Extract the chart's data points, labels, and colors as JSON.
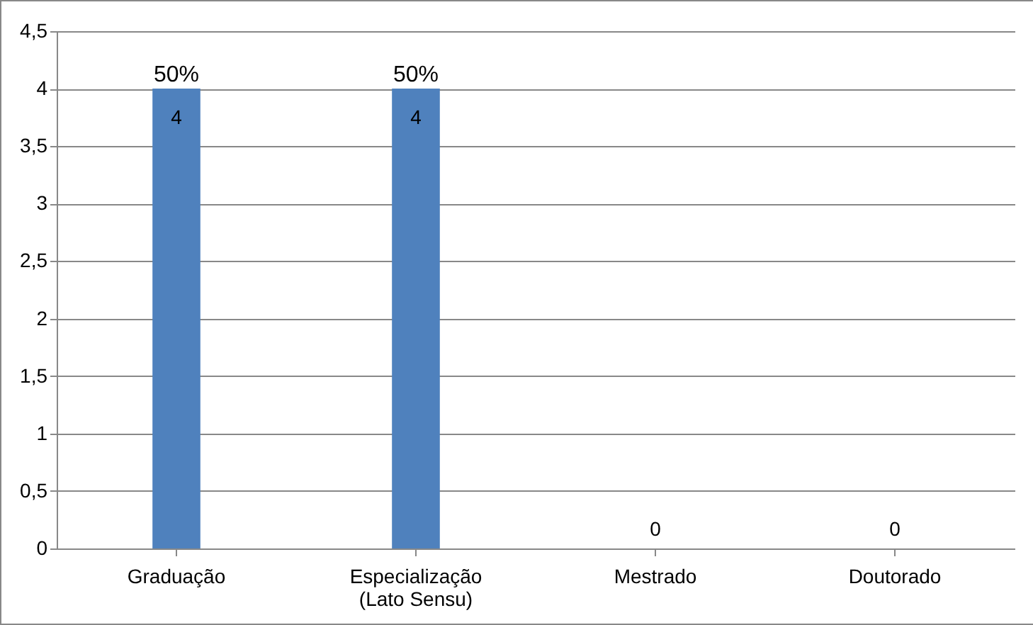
{
  "chart_data": {
    "type": "bar",
    "categories": [
      "Graduação",
      "Especialização\n(Lato Sensu)",
      "Mestrado",
      "Doutorado"
    ],
    "values": [
      4,
      4,
      0,
      0
    ],
    "color": "#4f81bd",
    "data_labels": true,
    "annotations": [
      {
        "text": "50%",
        "x": "Graduação",
        "y": 4
      },
      {
        "text": "50%",
        "x": "Especialização\n(Lato Sensu)",
        "y": 4
      }
    ],
    "ylim": [
      0,
      4.5
    ],
    "yticks": [
      0,
      {
        "value": 0.5,
        "label": "0,5"
      },
      1,
      {
        "value": 1.5,
        "label": "1,5"
      },
      2,
      {
        "value": 2.5,
        "label": "2,5"
      },
      3,
      {
        "value": 3.5,
        "label": "3,5"
      },
      4,
      {
        "value": 4.5,
        "label": "4,5"
      }
    ],
    "grid": "y"
  }
}
